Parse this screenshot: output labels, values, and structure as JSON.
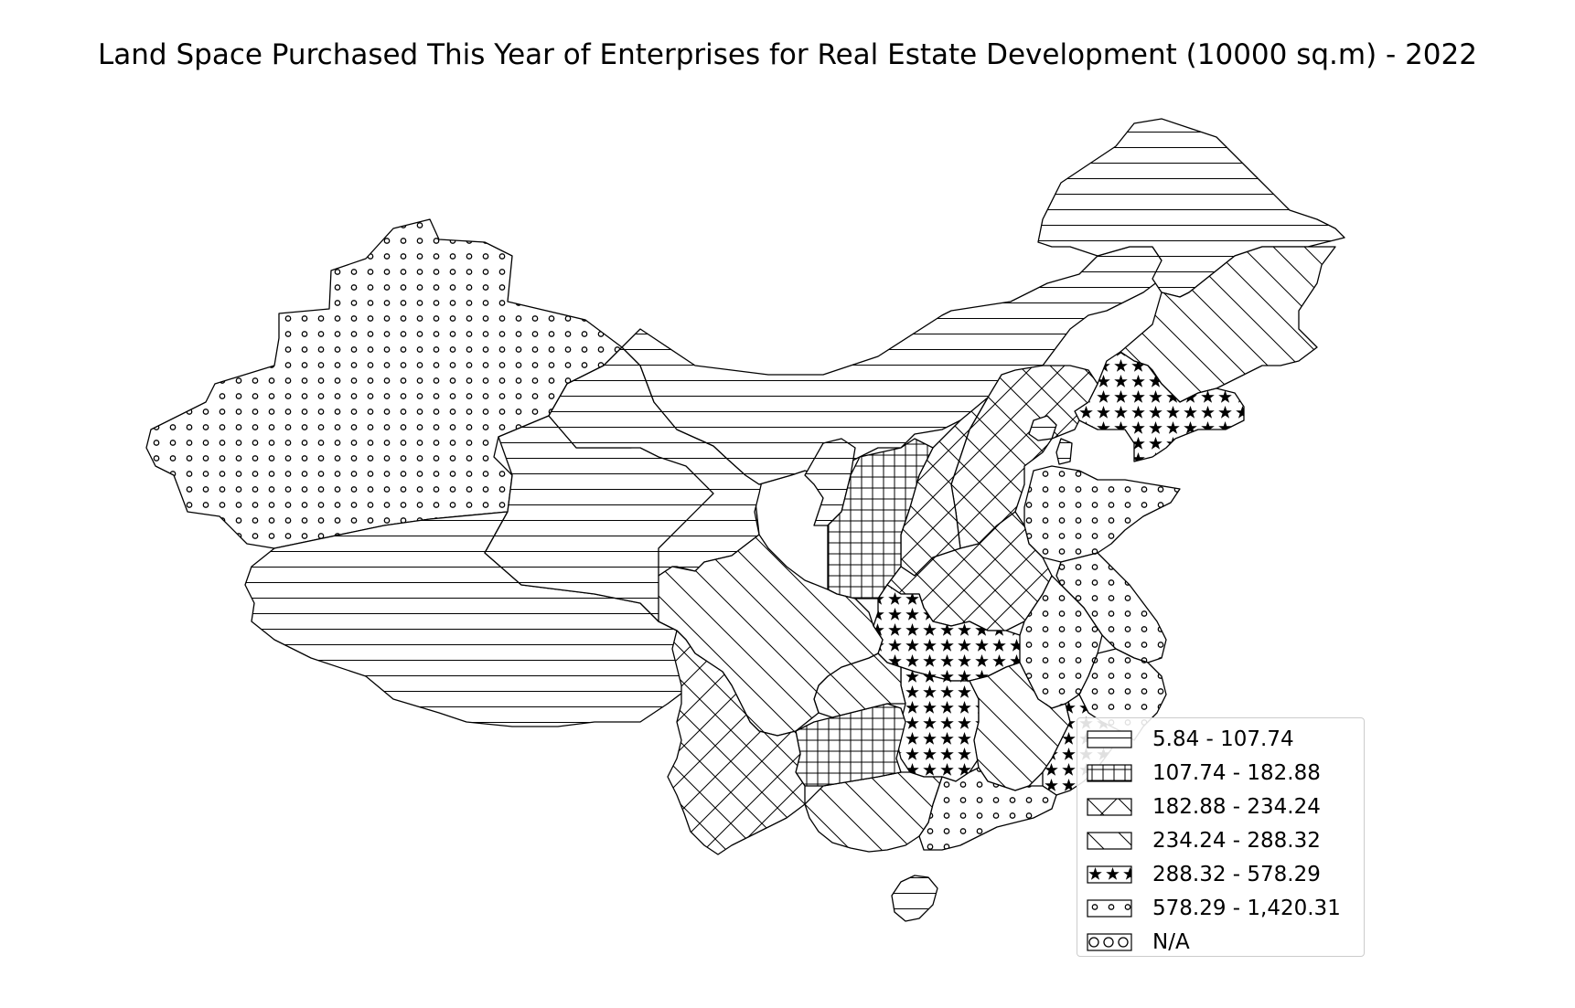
{
  "map": {
    "title": "Land Space Purchased This Year of Enterprises for Real Estate Development (10000 sq.m) - 2022",
    "legend": {
      "placement": "bottom-right",
      "items": [
        {
          "label": "5.84 - 107.74",
          "pattern": "hlines"
        },
        {
          "label": "107.74 - 182.88",
          "pattern": "grid"
        },
        {
          "label": "182.88 - 234.24",
          "pattern": "xhatch"
        },
        {
          "label": "234.24 - 288.32",
          "pattern": "bslash"
        },
        {
          "label": "288.32 - 578.29",
          "pattern": "stars"
        },
        {
          "label": "578.29 - 1,420.31",
          "pattern": "smalldots"
        },
        {
          "label": "N/A",
          "pattern": "bigdots"
        }
      ]
    },
    "regions": [
      {
        "region": "Xinjiang",
        "class": "578.29 - 1,420.31",
        "pattern": "smalldots"
      },
      {
        "region": "Tibet",
        "class": "5.84 - 107.74",
        "pattern": "hlines"
      },
      {
        "region": "Qinghai",
        "class": "5.84 - 107.74",
        "pattern": "hlines"
      },
      {
        "region": "Gansu",
        "class": "5.84 - 107.74",
        "pattern": "hlines"
      },
      {
        "region": "Inner Mongolia",
        "class": "5.84 - 107.74",
        "pattern": "hlines"
      },
      {
        "region": "Heilongjiang",
        "class": "5.84 - 107.74",
        "pattern": "hlines"
      },
      {
        "region": "Jilin",
        "class": "234.24 - 288.32",
        "pattern": "bslash"
      },
      {
        "region": "Liaoning",
        "class": "288.32 - 578.29",
        "pattern": "stars"
      },
      {
        "region": "Hebei",
        "class": "182.88 - 234.24",
        "pattern": "xhatch"
      },
      {
        "region": "Beijing",
        "class": "5.84 - 107.74",
        "pattern": "hlines"
      },
      {
        "region": "Tianjin",
        "class": "5.84 - 107.74",
        "pattern": "hlines"
      },
      {
        "region": "Shanxi",
        "class": "182.88 - 234.24",
        "pattern": "xhatch"
      },
      {
        "region": "Ningxia",
        "class": "5.84 - 107.74",
        "pattern": "hlines"
      },
      {
        "region": "Shaanxi",
        "class": "107.74 - 182.88",
        "pattern": "grid"
      },
      {
        "region": "Shandong",
        "class": "578.29 - 1,420.31",
        "pattern": "smalldots"
      },
      {
        "region": "Henan",
        "class": "182.88 - 234.24",
        "pattern": "xhatch"
      },
      {
        "region": "Jiangsu",
        "class": "578.29 - 1,420.31",
        "pattern": "smalldots"
      },
      {
        "region": "Anhui",
        "class": "578.29 - 1,420.31",
        "pattern": "smalldots"
      },
      {
        "region": "Zhejiang",
        "class": "578.29 - 1,420.31",
        "pattern": "smalldots"
      },
      {
        "region": "Hubei",
        "class": "288.32 - 578.29",
        "pattern": "stars"
      },
      {
        "region": "Hunan",
        "class": "288.32 - 578.29",
        "pattern": "stars"
      },
      {
        "region": "Jiangxi",
        "class": "234.24 - 288.32",
        "pattern": "bslash"
      },
      {
        "region": "Fujian",
        "class": "288.32 - 578.29",
        "pattern": "stars"
      },
      {
        "region": "Guangdong",
        "class": "578.29 - 1,420.31",
        "pattern": "smalldots"
      },
      {
        "region": "Guangxi",
        "class": "234.24 - 288.32",
        "pattern": "bslash"
      },
      {
        "region": "Guizhou",
        "class": "107.74 - 182.88",
        "pattern": "grid"
      },
      {
        "region": "Chongqing",
        "class": "234.24 - 288.32",
        "pattern": "bslash"
      },
      {
        "region": "Sichuan",
        "class": "234.24 - 288.32",
        "pattern": "bslash"
      },
      {
        "region": "Yunnan",
        "class": "182.88 - 234.24",
        "pattern": "xhatch"
      },
      {
        "region": "Hainan",
        "class": "5.84 - 107.74",
        "pattern": "hlines"
      }
    ]
  }
}
